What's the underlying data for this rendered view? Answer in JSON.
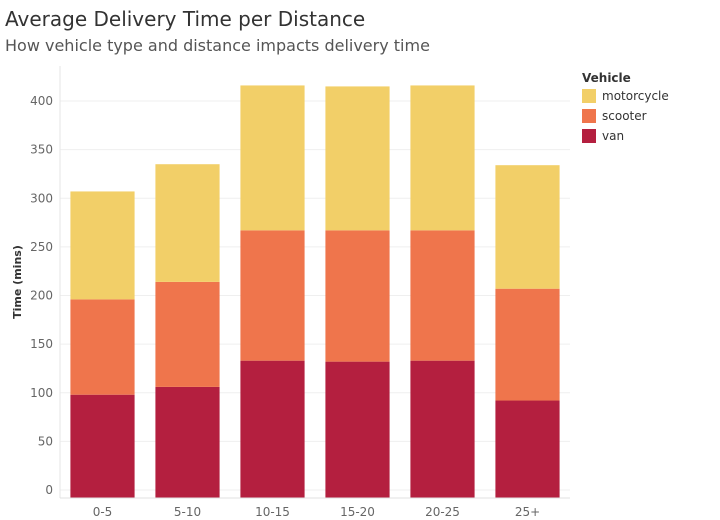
{
  "chart_data": {
    "type": "bar",
    "stacked": true,
    "title": "Average Delivery Time per Distance",
    "subtitle": "How vehicle type and distance impacts delivery time",
    "xlabel": "",
    "ylabel": "Time (mins)",
    "ylim": [
      0,
      420
    ],
    "yticks": [
      0,
      50,
      100,
      150,
      200,
      250,
      300,
      350,
      400
    ],
    "grid": true,
    "legend_title": "Vehicle",
    "legend_position": "top-right",
    "categories": [
      "0-5",
      "5-10",
      "10-15",
      "15-20",
      "20-25",
      "25+"
    ],
    "series": [
      {
        "name": "van",
        "color": "#b41f3f",
        "values": [
          98,
          106,
          133,
          132,
          133,
          92
        ]
      },
      {
        "name": "scooter",
        "color": "#ef754c",
        "values": [
          98,
          108,
          134,
          135,
          134,
          115
        ]
      },
      {
        "name": "motorcycle",
        "color": "#f2cf68",
        "values": [
          111,
          121,
          149,
          148,
          149,
          127
        ]
      }
    ],
    "legend_order": [
      "motorcycle",
      "scooter",
      "van"
    ]
  }
}
